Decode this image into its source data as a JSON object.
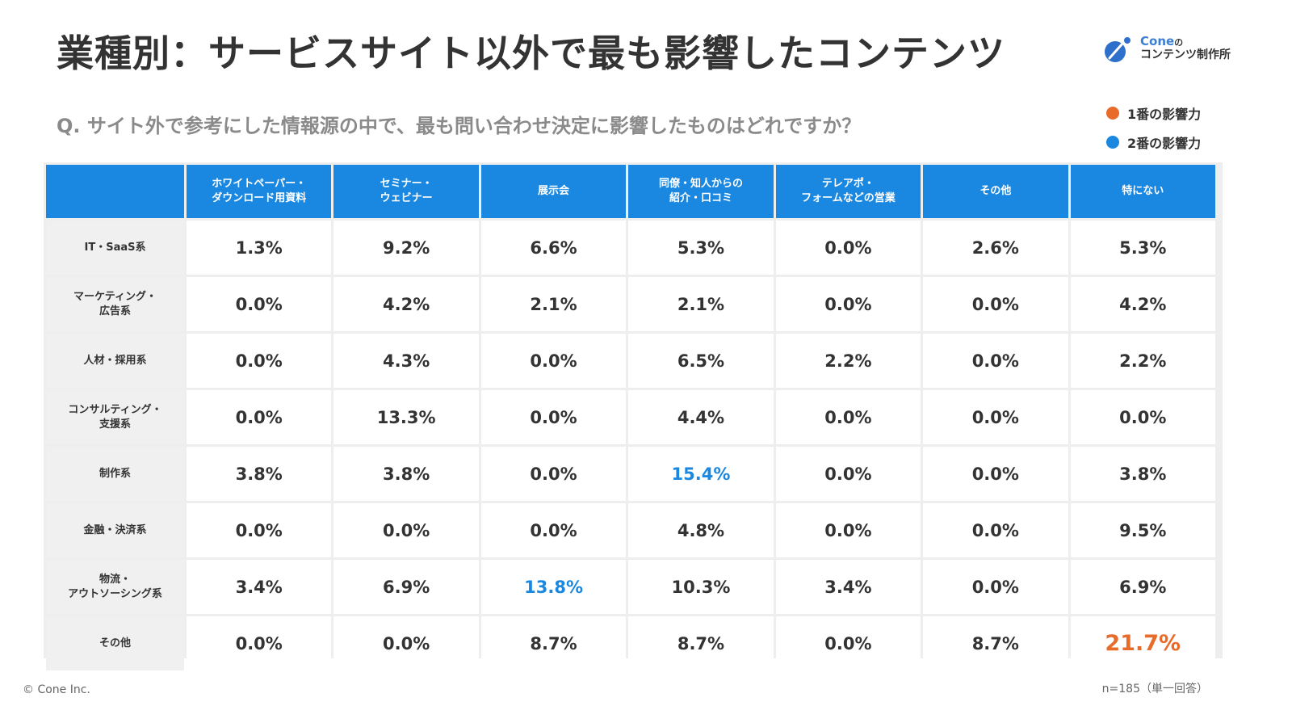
{
  "title": "業種別：サービスサイト以外で最も影響したコンテンツ",
  "logo": {
    "brand": "Cone",
    "no": "の",
    "sub": "コンテンツ制作所"
  },
  "question": "Q. サイト外で参考にした情報源の中で、最も問い合わせ決定に影響したものはどれですか？",
  "legend": [
    {
      "label": "1番の影響力",
      "color": "#e96b2a"
    },
    {
      "label": "2番の影響力",
      "color": "#1a87e0"
    }
  ],
  "footer": {
    "copyright": "© Cone Inc.",
    "note": "n=185（単一回答）"
  },
  "chart_data": {
    "type": "table",
    "columns": [
      [
        "ホワイトペーパー・",
        "ダウンロード用資料"
      ],
      [
        "セミナー・",
        "ウェビナー"
      ],
      [
        "展示会"
      ],
      [
        "同僚・知人からの",
        "紹介・口コミ"
      ],
      [
        "テレアポ・",
        "フォームなどの営業"
      ],
      [
        "その他"
      ],
      [
        "特にない"
      ]
    ],
    "rows": [
      {
        "label": [
          "IT・SaaS系"
        ],
        "values": [
          "1.3%",
          "9.2%",
          "6.6%",
          "5.3%",
          "0.0%",
          "2.6%",
          "5.3%"
        ],
        "highlight": [
          null,
          null,
          null,
          null,
          null,
          null,
          null
        ]
      },
      {
        "label": [
          "マーケティング・",
          "広告系"
        ],
        "values": [
          "0.0%",
          "4.2%",
          "2.1%",
          "2.1%",
          "0.0%",
          "0.0%",
          "4.2%"
        ],
        "highlight": [
          null,
          null,
          null,
          null,
          null,
          null,
          null
        ]
      },
      {
        "label": [
          "人材・採用系"
        ],
        "values": [
          "0.0%",
          "4.3%",
          "0.0%",
          "6.5%",
          "2.2%",
          "0.0%",
          "2.2%"
        ],
        "highlight": [
          null,
          null,
          null,
          null,
          null,
          null,
          null
        ]
      },
      {
        "label": [
          "コンサルティング・",
          "支援系"
        ],
        "values": [
          "0.0%",
          "13.3%",
          "0.0%",
          "4.4%",
          "0.0%",
          "0.0%",
          "0.0%"
        ],
        "highlight": [
          null,
          null,
          null,
          null,
          null,
          null,
          null
        ]
      },
      {
        "label": [
          "制作系"
        ],
        "values": [
          "3.8%",
          "3.8%",
          "0.0%",
          "15.4%",
          "0.0%",
          "0.0%",
          "3.8%"
        ],
        "highlight": [
          null,
          null,
          null,
          "blue",
          null,
          null,
          null
        ]
      },
      {
        "label": [
          "金融・決済系"
        ],
        "values": [
          "0.0%",
          "0.0%",
          "0.0%",
          "4.8%",
          "0.0%",
          "0.0%",
          "9.5%"
        ],
        "highlight": [
          null,
          null,
          null,
          null,
          null,
          null,
          null
        ]
      },
      {
        "label": [
          "物流・",
          "アウトソーシング系"
        ],
        "values": [
          "3.4%",
          "6.9%",
          "13.8%",
          "10.3%",
          "3.4%",
          "0.0%",
          "6.9%"
        ],
        "highlight": [
          null,
          null,
          "blue",
          null,
          null,
          null,
          null
        ]
      },
      {
        "label": [
          "その他"
        ],
        "values": [
          "0.0%",
          "0.0%",
          "8.7%",
          "8.7%",
          "0.0%",
          "8.7%",
          "21.7%"
        ],
        "highlight": [
          null,
          null,
          null,
          null,
          null,
          null,
          "orange"
        ]
      }
    ]
  }
}
